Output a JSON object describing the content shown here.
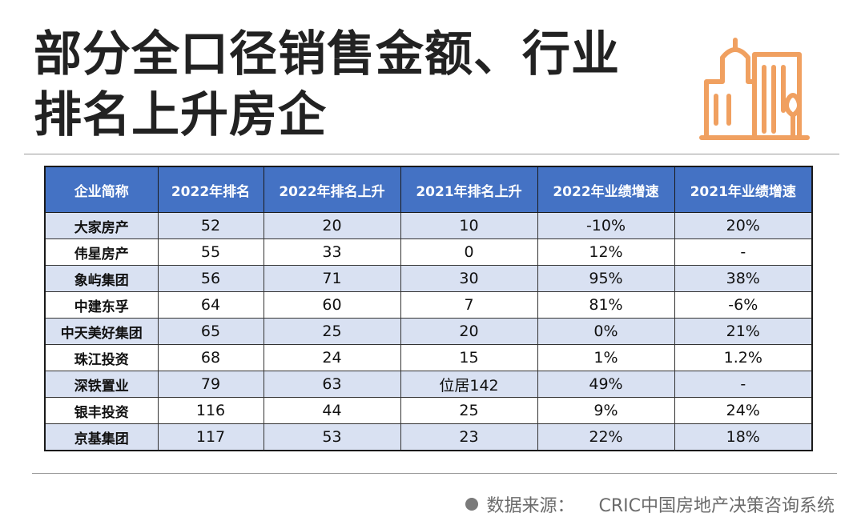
{
  "title": {
    "line1": "部分全口径销售金额、行业",
    "line2": "排名上升房企"
  },
  "colors": {
    "header_bg": "#4472c4",
    "row_alt": "#d9e1f2",
    "logo": "#f0a060"
  },
  "table": {
    "headers": [
      "企业简称",
      "2022年排名",
      "2022年排名上升",
      "2021年排名上升",
      "2022年业绩增速",
      "2021年业绩增速"
    ],
    "rows": [
      [
        "大家房产",
        "52",
        "20",
        "10",
        "-10%",
        "20%"
      ],
      [
        "伟星房产",
        "55",
        "33",
        "0",
        "12%",
        "-"
      ],
      [
        "象屿集团",
        "56",
        "71",
        "30",
        "95%",
        "38%"
      ],
      [
        "中建东孚",
        "64",
        "60",
        "7",
        "81%",
        "-6%"
      ],
      [
        "中天美好集团",
        "65",
        "25",
        "20",
        "0%",
        "21%"
      ],
      [
        "珠江投资",
        "68",
        "24",
        "15",
        "1%",
        "1.2%"
      ],
      [
        "深铁置业",
        "79",
        "63",
        "位居142",
        "49%",
        "-"
      ],
      [
        "银丰投资",
        "116",
        "44",
        "25",
        "9%",
        "24%"
      ],
      [
        "京基集团",
        "117",
        "53",
        "23",
        "22%",
        "18%"
      ]
    ]
  },
  "source": {
    "label": "数据来源：",
    "value": "CRIC中国房地产决策咨询系统"
  }
}
